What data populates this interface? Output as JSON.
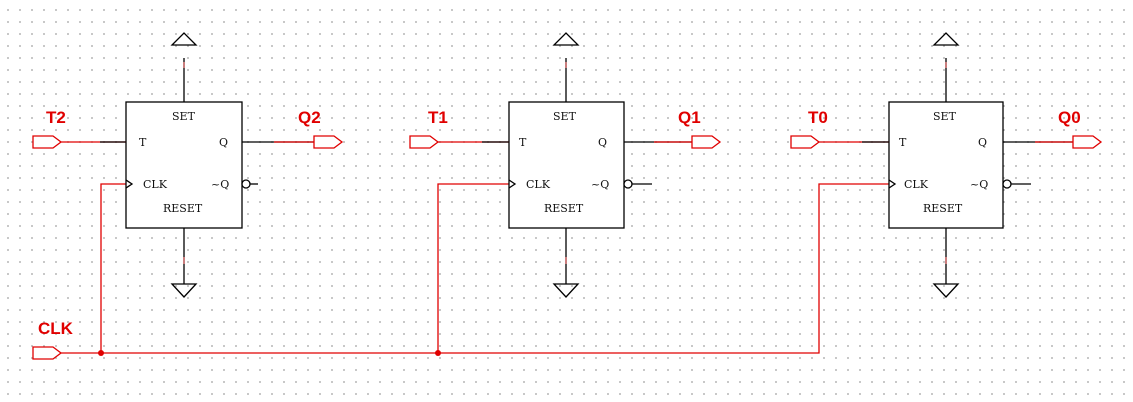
{
  "inputs": {
    "t2": "T2",
    "t1": "T1",
    "t0": "T0",
    "clk": "CLK"
  },
  "outputs": {
    "q2": "Q2",
    "q1": "Q1",
    "q0": "Q0"
  },
  "flipflop_pins": {
    "set": "SET",
    "reset": "RESET",
    "t": "T",
    "q": "Q",
    "clk": "CLK",
    "qbar": "~Q"
  },
  "colors": {
    "wire_active": "#e00000",
    "wire": "#000000"
  }
}
